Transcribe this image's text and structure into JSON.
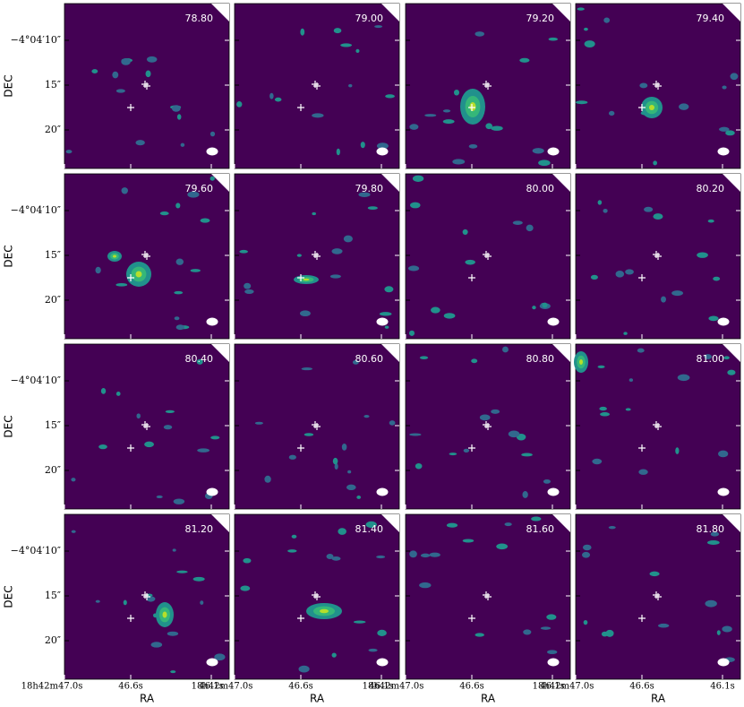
{
  "panels": [
    {
      "label": "78.80"
    },
    {
      "label": "79.00"
    },
    {
      "label": "79.20"
    },
    {
      "label": "79.40"
    },
    {
      "label": "79.60"
    },
    {
      "label": "79.80"
    },
    {
      "label": "80.00"
    },
    {
      "label": "80.20"
    },
    {
      "label": "80.40"
    },
    {
      "label": "80.60"
    },
    {
      "label": "80.80"
    },
    {
      "label": "81.00"
    },
    {
      "label": "81.20"
    },
    {
      "label": "81.40"
    },
    {
      "label": "81.60"
    },
    {
      "label": "81.80"
    }
  ],
  "y_axis": {
    "label": "DEC",
    "ticks": [
      "−4°04′10″",
      "15″",
      "20″"
    ]
  },
  "x_axis": {
    "label": "RA",
    "ticks": [
      "18h42m47.0s",
      "46.6s",
      "46.1s"
    ]
  }
}
